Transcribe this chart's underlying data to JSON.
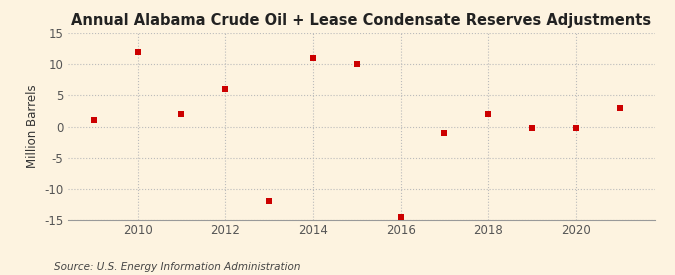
{
  "title": "Annual Alabama Crude Oil + Lease Condensate Reserves Adjustments",
  "ylabel": "Million Barrels",
  "source": "Source: U.S. Energy Information Administration",
  "background_color": "#fdf3e0",
  "plot_background_color": "#fdf3e0",
  "years": [
    2009,
    2010,
    2011,
    2012,
    2013,
    2014,
    2015,
    2016,
    2017,
    2018,
    2019,
    2020,
    2021
  ],
  "values": [
    1.0,
    12.0,
    2.0,
    6.0,
    -12.0,
    11.0,
    10.0,
    -14.5,
    -1.0,
    2.0,
    -0.3,
    -0.3,
    3.0
  ],
  "marker_color": "#cc0000",
  "marker": "s",
  "marker_size": 4,
  "ylim": [
    -15,
    15
  ],
  "yticks": [
    -15,
    -10,
    -5,
    0,
    5,
    10,
    15
  ],
  "xlim": [
    2008.4,
    2021.8
  ],
  "xticks": [
    2010,
    2012,
    2014,
    2016,
    2018,
    2020
  ],
  "grid_color": "#bbbbbb",
  "grid_style": ":",
  "title_fontsize": 10.5,
  "label_fontsize": 8.5,
  "tick_fontsize": 8.5,
  "source_fontsize": 7.5
}
